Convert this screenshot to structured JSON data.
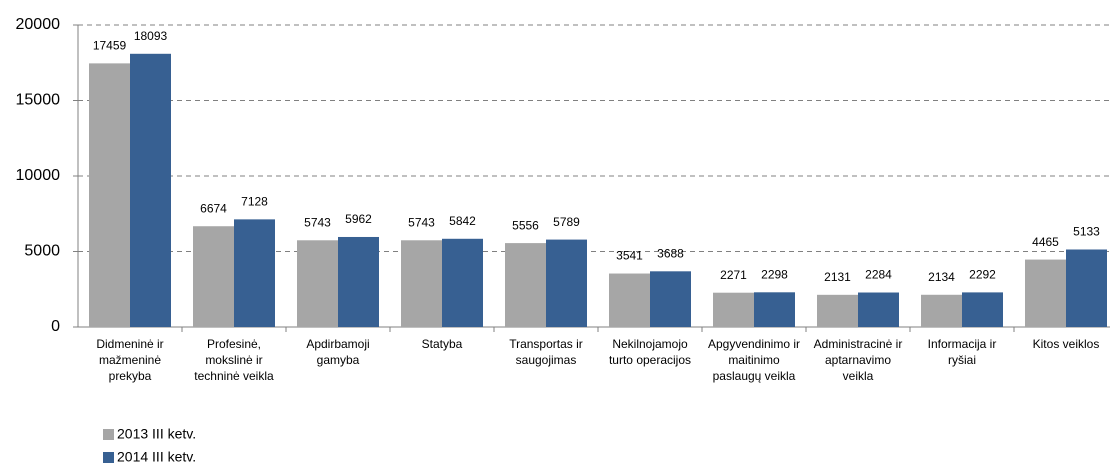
{
  "chart_data": {
    "type": "bar",
    "categories": [
      [
        "Didmeninė ir",
        "mažmeninė",
        "prekyba"
      ],
      [
        "Profesinė,",
        "mokslinė ir",
        "techninė veikla"
      ],
      [
        "Apdirbamoji",
        "gamyba"
      ],
      [
        "Statyba"
      ],
      [
        "Transportas ir",
        "saugojimas"
      ],
      [
        "Nekilnojamojo",
        "turto operacijos"
      ],
      [
        "Apgyvendinimo ir",
        "maitinimo",
        "paslaugų veikla"
      ],
      [
        "Administracinė ir",
        "aptarnavimo",
        "veikla"
      ],
      [
        "Informacija ir",
        "ryšiai"
      ],
      [
        "Kitos veiklos"
      ]
    ],
    "series": [
      {
        "name": "2013 III ketv.",
        "color": "#a6a6a6",
        "values": [
          17459,
          6674,
          5743,
          5743,
          5556,
          3541,
          2271,
          2131,
          2134,
          4465
        ]
      },
      {
        "name": "2014 III ketv.",
        "color": "#376092",
        "values": [
          18093,
          7128,
          5962,
          5842,
          5789,
          3688,
          2298,
          2284,
          2292,
          5133
        ]
      }
    ],
    "ylim": [
      0,
      20000
    ],
    "yticks": [
      0,
      5000,
      10000,
      15000,
      20000
    ],
    "grid": true,
    "legend": "bottom-left"
  }
}
